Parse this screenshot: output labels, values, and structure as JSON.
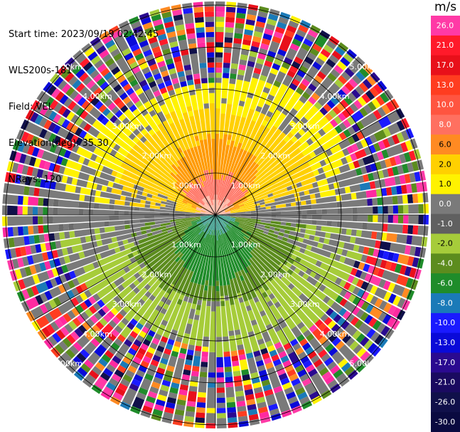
{
  "info": {
    "start_time": "Start time: 2023/09/19 02:42:45",
    "instrument": "WLS200s-181",
    "field": "Field: VEL",
    "elevation": "Elevation(deg): 35.30",
    "nrays": "NRays: 120"
  },
  "colorbar": {
    "unit": "m/s",
    "ticks": [
      "26.0",
      "21.0",
      "17.0",
      "13.0",
      "10.0",
      "8.0",
      "6.0",
      "2.0",
      "1.0",
      "0.0",
      "-1.0",
      "-2.0",
      "-4.0",
      "-6.0",
      "-8.0",
      "-10.0",
      "-13.0",
      "-17.0",
      "-21.0",
      "-26.0",
      "-30.0"
    ],
    "colors": [
      "#ff3aa6",
      "#ff1a2a",
      "#e8101a",
      "#ff3d20",
      "#ff5540",
      "#ff7060",
      "#ff8a22",
      "#ffd000",
      "#fff200",
      "#7a7a7a",
      "#606060",
      "#a6cc3a",
      "#5c8c1e",
      "#1f8c2a",
      "#1a7ab8",
      "#1a1aff",
      "#0a0ad8",
      "#2a0a90",
      "#1a0a60",
      "#10104a",
      "#0a0a40"
    ]
  },
  "range_labels": [
    "1.00km",
    "2.00km",
    "3.00km",
    "4.00km",
    "5.00km"
  ],
  "chart_data": {
    "type": "heatmap",
    "field": "VEL",
    "nrays": 120,
    "elevation_deg": 35.3,
    "range_rings_km": [
      1,
      2,
      3,
      4,
      5
    ],
    "colorbar_unit": "m/s",
    "colorbar_range": [
      -30,
      26
    ]
  }
}
